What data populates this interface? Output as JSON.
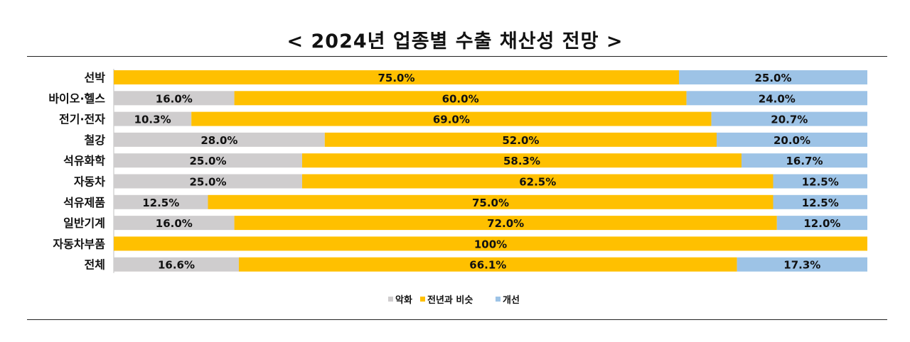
{
  "title": "< 2024년 업종별 수출 채산성 전망 >",
  "chart_data": {
    "type": "bar",
    "orientation": "horizontal",
    "stacked": true,
    "title": "< 2024년 업종별 수출 채산성 전망 >",
    "categories": [
      "선박",
      "바이오·헬스",
      "전기·전자",
      "철강",
      "석유화학",
      "자동차",
      "석유제품",
      "일반기계",
      "자동차부품",
      "전체"
    ],
    "series": [
      {
        "name": "악화",
        "color": "#cfcdce",
        "values": [
          0,
          16.0,
          10.3,
          28.0,
          25.0,
          25.0,
          12.5,
          16.0,
          0,
          16.6
        ]
      },
      {
        "name": "전년과 비슷",
        "color": "#ffc000",
        "values": [
          75.0,
          60.0,
          69.0,
          52.0,
          58.3,
          62.5,
          75.0,
          72.0,
          100,
          66.1
        ]
      },
      {
        "name": "개선",
        "color": "#9dc3e6",
        "values": [
          25.0,
          24.0,
          20.7,
          20.0,
          16.7,
          12.5,
          12.5,
          12.0,
          0,
          17.3
        ]
      }
    ],
    "data_labels": [
      [
        "",
        "75.0%",
        "25.0%"
      ],
      [
        "16.0%",
        "60.0%",
        "24.0%"
      ],
      [
        "10.3%",
        "69.0%",
        "20.7%"
      ],
      [
        "28.0%",
        "52.0%",
        "20.0%"
      ],
      [
        "25.0%",
        "58.3%",
        "16.7%"
      ],
      [
        "25.0%",
        "62.5%",
        "12.5%"
      ],
      [
        "12.5%",
        "75.0%",
        "12.5%"
      ],
      [
        "16.0%",
        "72.0%",
        "12.0%"
      ],
      [
        "",
        "100%",
        ""
      ],
      [
        "16.6%",
        "66.1%",
        "17.3%"
      ]
    ],
    "xlim": [
      0,
      100
    ],
    "grid": false,
    "legend_position": "bottom"
  }
}
